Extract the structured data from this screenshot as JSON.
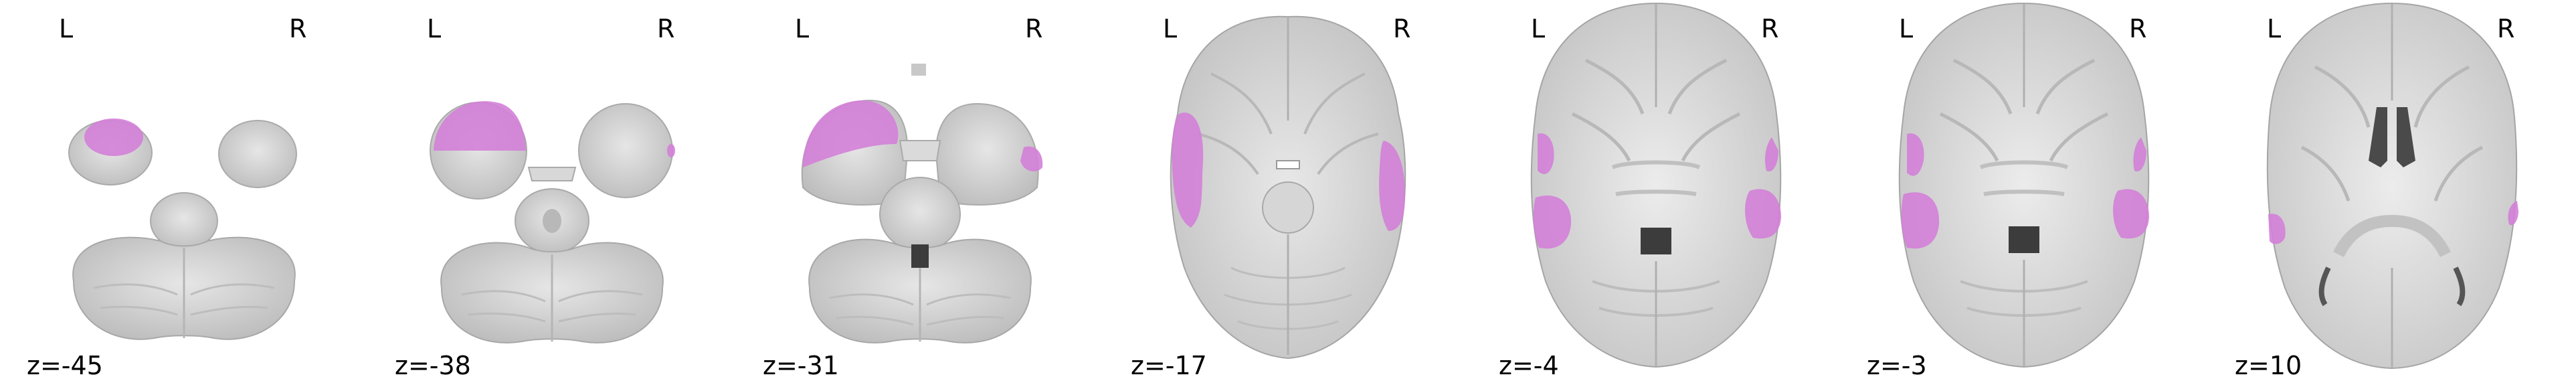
{
  "view": {
    "orientation_left": "L",
    "orientation_right": "R"
  },
  "colors": {
    "overlay": "#d37fd8",
    "brain_light": "#e4e4e4",
    "brain_mid": "#cdcdcd",
    "brain_dark": "#9a9a9a",
    "ventricle": "#3c3c3c"
  },
  "slices": [
    {
      "coord": "z=-45",
      "type": "cerebellum-low"
    },
    {
      "coord": "z=-38",
      "type": "cerebellum-mid"
    },
    {
      "coord": "z=-31",
      "type": "cerebellum-high"
    },
    {
      "coord": "z=-17",
      "type": "midbrain"
    },
    {
      "coord": "z=-4",
      "type": "thalamic"
    },
    {
      "coord": "z=-3",
      "type": "thalamic"
    },
    {
      "coord": "z=10",
      "type": "ventricular"
    }
  ]
}
